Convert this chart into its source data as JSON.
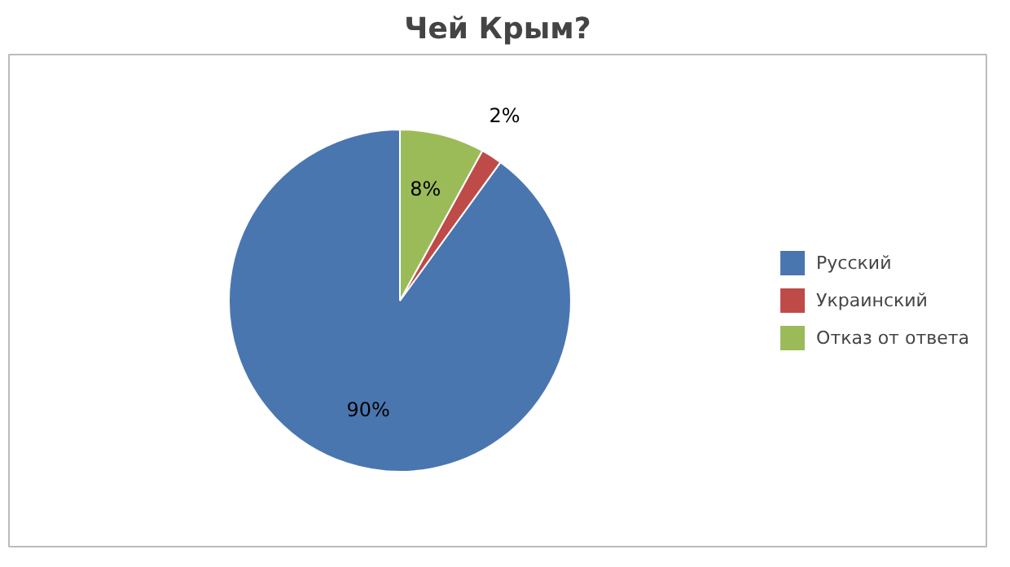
{
  "chart_data": {
    "type": "pie",
    "title": "Чей Крым?",
    "categories": [
      "Русский",
      "Украинский",
      "Отказ от ответа"
    ],
    "values": [
      90,
      2,
      8
    ],
    "colors": [
      "#4a76b0",
      "#be4b48",
      "#9bbb59"
    ],
    "value_labels": [
      "90%",
      "2%",
      "8%"
    ],
    "legend": "right"
  }
}
